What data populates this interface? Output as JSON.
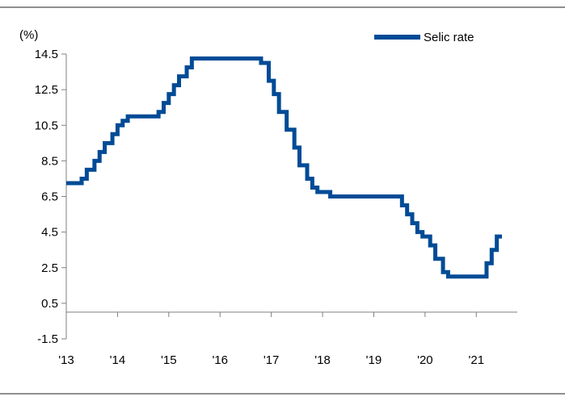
{
  "chart_data": {
    "type": "line",
    "title": "",
    "ylabel": "(%)",
    "xlabel": "",
    "ylim": [
      -1.5,
      14.5
    ],
    "yticks": [
      -1.5,
      0.5,
      2.5,
      4.5,
      6.5,
      8.5,
      10.5,
      12.5,
      14.5
    ],
    "ytick_labels": [
      "-1.5",
      "0.5",
      "2.5",
      "4.5",
      "6.5",
      "8.5",
      "10.5",
      "12.5",
      "14.5"
    ],
    "xlim": [
      2013.0,
      2021.8
    ],
    "xticks": [
      2013,
      2014,
      2015,
      2016,
      2017,
      2018,
      2019,
      2020,
      2021
    ],
    "xtick_labels": [
      "'13",
      "'14",
      "'15",
      "'16",
      "'17",
      "'18",
      "'19",
      "'20",
      "'21"
    ],
    "grid": false,
    "legend_position": "top-right",
    "colors": {
      "series": "#004b96",
      "axis": "#7f7f7f",
      "frame": "#8f8f8f"
    },
    "series": [
      {
        "name": "Selic rate",
        "step": true,
        "x": [
          2013.0,
          2013.3,
          2013.4,
          2013.55,
          2013.65,
          2013.75,
          2013.9,
          2014.0,
          2014.1,
          2014.2,
          2014.3,
          2014.8,
          2014.9,
          2015.0,
          2015.1,
          2015.2,
          2015.35,
          2015.45,
          2015.55,
          2015.65,
          2016.8,
          2016.95,
          2017.05,
          2017.15,
          2017.3,
          2017.45,
          2017.55,
          2017.7,
          2017.8,
          2017.9,
          2018.15,
          2019.55,
          2019.65,
          2019.75,
          2019.85,
          2019.95,
          2020.1,
          2020.2,
          2020.35,
          2020.45,
          2020.6,
          2021.2,
          2021.3,
          2021.4,
          2021.5
        ],
        "values": [
          7.25,
          7.5,
          8.0,
          8.5,
          9.0,
          9.5,
          10.0,
          10.5,
          10.75,
          11.0,
          11.0,
          11.25,
          11.75,
          12.25,
          12.75,
          13.25,
          13.75,
          14.25,
          14.25,
          14.25,
          14.0,
          13.0,
          12.25,
          11.25,
          10.25,
          9.25,
          8.25,
          7.5,
          7.0,
          6.75,
          6.5,
          6.0,
          5.5,
          5.0,
          4.5,
          4.25,
          3.75,
          3.0,
          2.25,
          2.0,
          2.0,
          2.75,
          3.5,
          4.25,
          4.25
        ]
      }
    ]
  }
}
